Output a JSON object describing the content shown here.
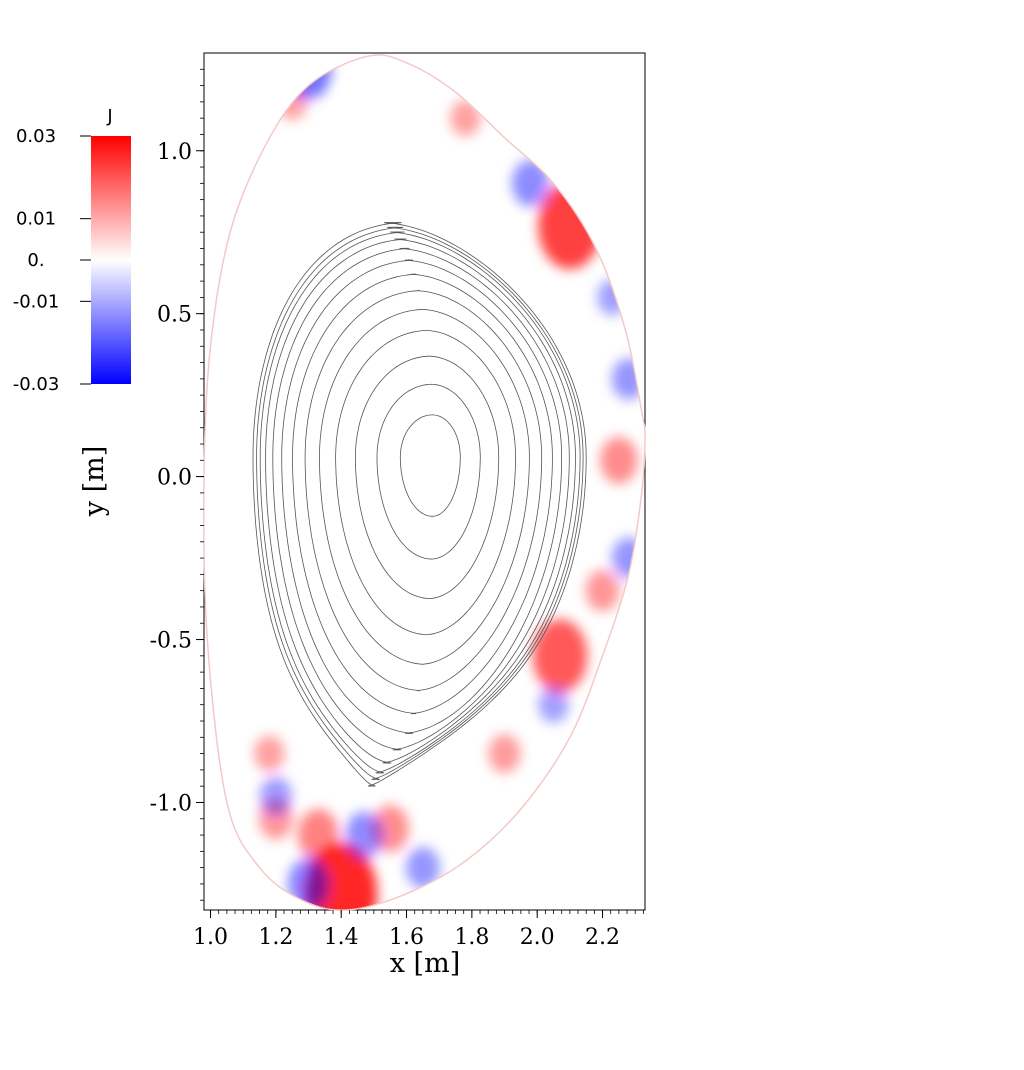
{
  "chart_data": {
    "type": "heatmap",
    "xlabel": "x [m]",
    "ylabel": "y [m]",
    "xlim": [
      0.98,
      2.33
    ],
    "ylim": [
      -1.33,
      1.3
    ],
    "x_ticks": [
      "1.0",
      "1.2",
      "1.4",
      "1.6",
      "1.8",
      "2.0",
      "2.2"
    ],
    "x_tick_values": [
      1.0,
      1.2,
      1.4,
      1.6,
      1.8,
      2.0,
      2.2
    ],
    "y_ticks": [
      "1.0",
      "0.5",
      "0.0",
      "-0.5",
      "-1.0"
    ],
    "y_tick_values": [
      1.0,
      0.5,
      0.0,
      -0.5,
      -1.0
    ],
    "colorbar": {
      "title": "J",
      "labels": [
        "0.03",
        "0.01",
        "0.",
        "-0.01",
        "-0.03"
      ],
      "values": [
        0.03,
        0.01,
        0.0,
        -0.01,
        -0.03
      ],
      "range": [
        -0.03,
        0.03
      ],
      "colors": {
        "max": "#ff0000",
        "mid": "#ffffff",
        "min": "#0000ff"
      }
    },
    "boundary": {
      "description": "outer plasma domain (D-shaped)",
      "points": [
        [
          1.48,
          1.29
        ],
        [
          1.6,
          1.27
        ],
        [
          1.75,
          1.18
        ],
        [
          1.9,
          1.04
        ],
        [
          2.05,
          0.9
        ],
        [
          2.18,
          0.7
        ],
        [
          2.27,
          0.45
        ],
        [
          2.32,
          0.2
        ],
        [
          2.33,
          0.12
        ],
        [
          2.32,
          -0.05
        ],
        [
          2.28,
          -0.3
        ],
        [
          2.2,
          -0.55
        ],
        [
          2.1,
          -0.8
        ],
        [
          1.95,
          -1.02
        ],
        [
          1.78,
          -1.18
        ],
        [
          1.6,
          -1.28
        ],
        [
          1.42,
          -1.33
        ],
        [
          1.28,
          -1.3
        ],
        [
          1.15,
          -1.2
        ],
        [
          1.05,
          -1.0
        ],
        [
          0.99,
          -0.5
        ],
        [
          0.98,
          0.0
        ],
        [
          1.0,
          0.4
        ],
        [
          1.06,
          0.75
        ],
        [
          1.17,
          1.02
        ],
        [
          1.3,
          1.2
        ]
      ]
    },
    "flux_surfaces": {
      "o_point": [
        1.68,
        0.06
      ],
      "x_point": [
        1.45,
        -0.95
      ],
      "normalized_levels": [
        0.18,
        0.31,
        0.43,
        0.54,
        0.63,
        0.71,
        0.78,
        0.84,
        0.89,
        0.93,
        0.96,
        0.98,
        1.0
      ],
      "lcfs_top": 0.78,
      "lcfs_left": 1.13,
      "lcfs_right": 2.15,
      "lcfs_bottom": -0.95
    },
    "hotspots": [
      {
        "x": 2.1,
        "y": 0.77,
        "J": 0.025
      },
      {
        "x": 2.07,
        "y": -0.55,
        "J": 0.02
      },
      {
        "x": 1.4,
        "y": -1.28,
        "J": 0.03
      },
      {
        "x": 1.33,
        "y": -1.1,
        "J": 0.012
      },
      {
        "x": 1.2,
        "y": -1.05,
        "J": 0.008
      },
      {
        "x": 1.55,
        "y": -1.08,
        "J": 0.01
      },
      {
        "x": 1.25,
        "y": 1.15,
        "J": 0.006
      },
      {
        "x": 2.25,
        "y": 0.05,
        "J": 0.01
      },
      {
        "x": 1.9,
        "y": -0.85,
        "J": 0.007
      },
      {
        "x": 1.78,
        "y": 1.1,
        "J": 0.006
      },
      {
        "x": 2.2,
        "y": -0.35,
        "J": 0.008
      },
      {
        "x": 1.18,
        "y": -0.85,
        "J": 0.006
      }
    ],
    "coldspots": [
      {
        "x": 1.98,
        "y": 0.9,
        "J": -0.01
      },
      {
        "x": 1.3,
        "y": -1.25,
        "J": -0.012
      },
      {
        "x": 1.47,
        "y": -1.1,
        "J": -0.01
      },
      {
        "x": 2.28,
        "y": 0.3,
        "J": -0.008
      },
      {
        "x": 2.28,
        "y": -0.25,
        "J": -0.008
      },
      {
        "x": 1.2,
        "y": -0.98,
        "J": -0.007
      },
      {
        "x": 1.3,
        "y": 1.25,
        "J": -0.015
      },
      {
        "x": 2.05,
        "y": -0.7,
        "J": -0.006
      },
      {
        "x": 1.65,
        "y": -1.2,
        "J": -0.008
      },
      {
        "x": 2.23,
        "y": 0.55,
        "J": -0.006
      }
    ]
  }
}
